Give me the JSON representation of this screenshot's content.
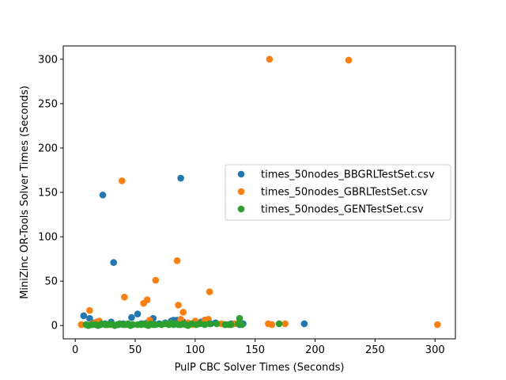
{
  "chart_data": {
    "type": "scatter",
    "title": "",
    "xlabel": "PulP CBC Solver Times (Seconds)",
    "ylabel": "MiniZinc OR-Tools Solver Times (Seconds)",
    "xlim": [
      -10,
      317
    ],
    "ylim": [
      -15,
      315
    ],
    "xticks": [
      0,
      50,
      100,
      150,
      200,
      250,
      300
    ],
    "yticks": [
      0,
      50,
      100,
      150,
      200,
      250,
      300
    ],
    "grid": false,
    "legend_position": "center-right",
    "series": [
      {
        "name": "times_50nodes_BBGRLTestSet.csv",
        "color": "#1f77b4",
        "points": [
          [
            7,
            11
          ],
          [
            12,
            8
          ],
          [
            16,
            3
          ],
          [
            21,
            1
          ],
          [
            23,
            147
          ],
          [
            25,
            2
          ],
          [
            30,
            4
          ],
          [
            32,
            71
          ],
          [
            36,
            1
          ],
          [
            40,
            2
          ],
          [
            45,
            1
          ],
          [
            47,
            9
          ],
          [
            52,
            13
          ],
          [
            55,
            2
          ],
          [
            60,
            3
          ],
          [
            65,
            8
          ],
          [
            70,
            2
          ],
          [
            75,
            3
          ],
          [
            80,
            5
          ],
          [
            82,
            6
          ],
          [
            85,
            6
          ],
          [
            88,
            166
          ],
          [
            90,
            4
          ],
          [
            95,
            2
          ],
          [
            100,
            3
          ],
          [
            105,
            4
          ],
          [
            108,
            6
          ],
          [
            113,
            2
          ],
          [
            117,
            3
          ],
          [
            125,
            1
          ],
          [
            130,
            2
          ],
          [
            137,
            1
          ],
          [
            140,
            2
          ],
          [
            191,
            2
          ]
        ]
      },
      {
        "name": "times_50nodes_GBRLTestSet.csv",
        "color": "#ff7f0e",
        "points": [
          [
            5,
            1
          ],
          [
            12,
            17
          ],
          [
            14,
            2
          ],
          [
            18,
            4
          ],
          [
            20,
            5
          ],
          [
            26,
            1
          ],
          [
            29,
            1
          ],
          [
            39,
            163
          ],
          [
            41,
            32
          ],
          [
            46,
            1
          ],
          [
            57,
            25
          ],
          [
            60,
            29
          ],
          [
            62,
            6
          ],
          [
            67,
            51
          ],
          [
            72,
            1
          ],
          [
            80,
            3
          ],
          [
            85,
            73
          ],
          [
            86,
            23
          ],
          [
            88,
            7
          ],
          [
            90,
            15
          ],
          [
            94,
            3
          ],
          [
            98,
            1
          ],
          [
            100,
            5
          ],
          [
            108,
            6
          ],
          [
            111,
            7
          ],
          [
            112,
            38
          ],
          [
            122,
            2
          ],
          [
            133,
            2
          ],
          [
            161,
            2
          ],
          [
            162,
            300
          ],
          [
            164,
            1
          ],
          [
            175,
            2
          ],
          [
            228,
            299
          ],
          [
            302,
            1
          ]
        ]
      },
      {
        "name": "times_50nodes_GENTestSet.csv",
        "color": "#2ca02c",
        "points": [
          [
            9,
            1
          ],
          [
            11,
            0
          ],
          [
            14,
            1
          ],
          [
            17,
            1
          ],
          [
            19,
            0
          ],
          [
            22,
            2
          ],
          [
            25,
            1
          ],
          [
            27,
            1
          ],
          [
            29,
            2
          ],
          [
            31,
            1
          ],
          [
            33,
            0
          ],
          [
            35,
            1
          ],
          [
            37,
            2
          ],
          [
            40,
            1
          ],
          [
            42,
            1
          ],
          [
            44,
            2
          ],
          [
            46,
            0
          ],
          [
            48,
            1
          ],
          [
            52,
            1
          ],
          [
            55,
            1
          ],
          [
            57,
            2
          ],
          [
            59,
            1
          ],
          [
            61,
            0
          ],
          [
            63,
            2
          ],
          [
            65,
            1
          ],
          [
            67,
            1
          ],
          [
            72,
            1
          ],
          [
            75,
            2
          ],
          [
            78,
            1
          ],
          [
            80,
            3
          ],
          [
            82,
            1
          ],
          [
            84,
            2
          ],
          [
            86,
            1
          ],
          [
            88,
            1
          ],
          [
            90,
            2
          ],
          [
            92,
            1
          ],
          [
            94,
            0
          ],
          [
            97,
            2
          ],
          [
            101,
            1
          ],
          [
            104,
            2
          ],
          [
            108,
            1
          ],
          [
            112,
            2
          ],
          [
            118,
            2
          ],
          [
            125,
            1
          ],
          [
            128,
            1
          ],
          [
            130,
            1
          ],
          [
            136,
            2
          ],
          [
            137,
            8
          ],
          [
            139,
            1
          ],
          [
            170,
            2
          ]
        ]
      }
    ]
  }
}
